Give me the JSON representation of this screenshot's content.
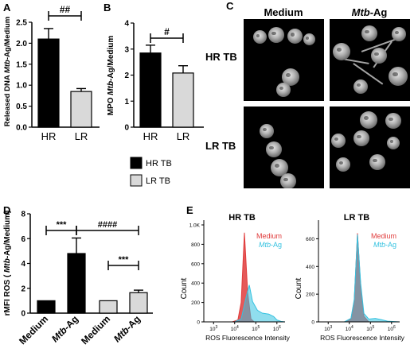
{
  "panels": {
    "A": {
      "letter": "A",
      "ylabel_pre": "Released DNA ",
      "ylabel_italic": "Mtb",
      "ylabel_post": "-Ag/Medium",
      "sig": "##"
    },
    "B": {
      "letter": "B",
      "ylabel_pre": "MPO ",
      "ylabel_italic": "Mtb",
      "ylabel_post": "-Ag/Medium",
      "sig": "#"
    },
    "C": {
      "letter": "C",
      "col1": "Medium",
      "col2_italic": "Mtb",
      "col2_post": "-Ag",
      "row1": "HR TB",
      "row2": "LR TB"
    },
    "D": {
      "letter": "D",
      "ylabel_pre": "rMFI ROS ( ",
      "ylabel_italic": "Mtb",
      "ylabel_post": "-Ag/Medium)",
      "sig_a": "***",
      "sig_b": "####",
      "sig_c": "***"
    },
    "E": {
      "letter": "E",
      "left_title": "HR TB",
      "right_title": "LR TB",
      "ylabel": "Count",
      "xlabel": "ROS Fluorescence Intensity",
      "legend_medium": "Medium",
      "legend_mtb_italic": "Mtb",
      "legend_mtb_post": "-Ag",
      "color_medium": "#e03c3c",
      "color_mtb": "#35c2e0"
    }
  },
  "legend_groups": {
    "hr": "HR TB",
    "lr": "LR TB",
    "color_hr": "#000000",
    "color_lr": "#d9d9d9"
  },
  "chart_data": [
    {
      "type": "bar",
      "panel": "A",
      "categories": [
        "HR",
        "LR"
      ],
      "values": [
        2.1,
        0.85
      ],
      "errors": [
        0.25,
        0.07
      ],
      "ylim": [
        0,
        2.5
      ],
      "yticks": [
        "0.0",
        "0.5",
        "1.0",
        "1.5",
        "2.0",
        "2.5"
      ],
      "ytick_values": [
        0,
        0.5,
        1.0,
        1.5,
        2.0,
        2.5
      ],
      "colors": [
        "#000000",
        "#d9d9d9"
      ]
    },
    {
      "type": "bar",
      "panel": "B",
      "categories": [
        "HR",
        "LR"
      ],
      "values": [
        2.85,
        2.08
      ],
      "errors": [
        0.3,
        0.28
      ],
      "ylim": [
        0,
        4
      ],
      "yticks": [
        "0",
        "1",
        "2",
        "3",
        "4"
      ],
      "ytick_values": [
        0,
        1,
        2,
        3,
        4
      ],
      "colors": [
        "#000000",
        "#d9d9d9"
      ]
    },
    {
      "type": "bar",
      "panel": "D",
      "categories": [
        "Medium",
        "Mtb-Ag",
        "Medium",
        "Mtb-Ag"
      ],
      "values": [
        1.0,
        4.8,
        1.0,
        1.65
      ],
      "errors": [
        0,
        1.25,
        0,
        0.2
      ],
      "ylim": [
        0,
        8
      ],
      "yticks": [
        "0",
        "2",
        "4",
        "6",
        "8"
      ],
      "ytick_values": [
        0,
        2,
        4,
        6,
        8
      ],
      "colors": [
        "#000000",
        "#000000",
        "#d9d9d9",
        "#d9d9d9"
      ]
    },
    {
      "type": "area",
      "panel": "E-HR",
      "ylim": [
        0,
        1000
      ],
      "yticks": [
        "0",
        "200",
        "400",
        "600",
        "800",
        "1.0K"
      ],
      "ytick_values": [
        0,
        200,
        400,
        600,
        800,
        1000
      ],
      "xticks": [
        "10^3",
        "10^4",
        "10^5",
        "10^6"
      ],
      "series": [
        {
          "name": "Medium",
          "x": [
            0.0,
            0.35,
            0.42,
            0.46,
            0.5,
            0.54,
            0.58,
            0.62,
            1.0
          ],
          "y": [
            0,
            0,
            20,
            200,
            920,
            300,
            30,
            0,
            0
          ]
        },
        {
          "name": "Mtb-Ag",
          "x": [
            0.0,
            0.38,
            0.46,
            0.52,
            0.56,
            0.6,
            0.66,
            0.72,
            0.8,
            0.86,
            0.9,
            0.95,
            1.0
          ],
          "y": [
            0,
            0,
            30,
            250,
            380,
            210,
            120,
            90,
            80,
            55,
            20,
            5,
            0
          ]
        }
      ]
    },
    {
      "type": "area",
      "panel": "E-LR",
      "ylim": [
        0,
        700
      ],
      "yticks": [
        "0",
        "200",
        "400",
        "600"
      ],
      "ytick_values": [
        0,
        200,
        400,
        600
      ],
      "xticks": [
        "10^3",
        "10^4",
        "10^5",
        "10^6"
      ],
      "series": [
        {
          "name": "Medium",
          "x": [
            0.0,
            0.32,
            0.4,
            0.44,
            0.48,
            0.52,
            0.56,
            0.62,
            1.0
          ],
          "y": [
            0,
            0,
            20,
            150,
            640,
            260,
            40,
            0,
            0
          ]
        },
        {
          "name": "Mtb-Ag",
          "x": [
            0.0,
            0.32,
            0.4,
            0.44,
            0.48,
            0.52,
            0.56,
            0.62,
            0.7,
            0.78,
            0.85,
            1.0
          ],
          "y": [
            0,
            0,
            25,
            160,
            630,
            280,
            60,
            20,
            25,
            15,
            5,
            0
          ]
        }
      ]
    }
  ]
}
